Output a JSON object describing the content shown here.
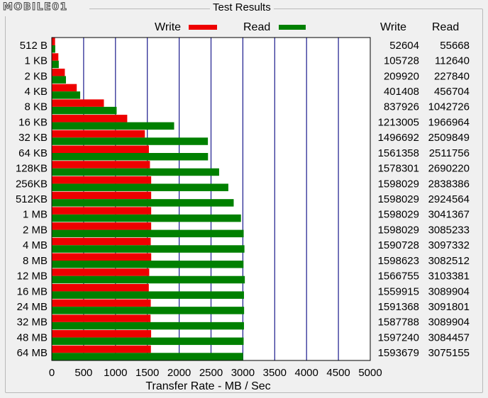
{
  "window": {
    "group_title": "Test Results",
    "watermark": "MOBILE01"
  },
  "legend": {
    "write_label": "Write",
    "read_label": "Read",
    "write_color": "#ee0000",
    "read_color": "#008000"
  },
  "table": {
    "write_header": "Write",
    "read_header": "Read"
  },
  "chart_data": {
    "type": "bar",
    "orientation": "horizontal",
    "title": "",
    "xlabel": "Transfer Rate - MB / Sec",
    "ylabel": "",
    "xlim": [
      0,
      5000
    ],
    "xticks": [
      0,
      500,
      1000,
      1500,
      2000,
      2500,
      3000,
      3500,
      4000,
      4500,
      5000
    ],
    "grid": "vertical",
    "legend_position": "top",
    "categories": [
      "512 B",
      "1 KB",
      "2 KB",
      "4 KB",
      "8 KB",
      "16 KB",
      "32 KB",
      "64 KB",
      "128KB",
      "256KB",
      "512KB",
      "1 MB",
      "2 MB",
      "4 MB",
      "8 MB",
      "12 MB",
      "16 MB",
      "24 MB",
      "32 MB",
      "48 MB",
      "64 MB"
    ],
    "series": [
      {
        "name": "Write",
        "color": "#ee0000",
        "values": [
          52604,
          105728,
          209920,
          401408,
          837926,
          1213005,
          1496692,
          1561358,
          1578301,
          1598029,
          1598029,
          1598029,
          1598029,
          1590728,
          1598623,
          1566755,
          1559915,
          1591368,
          1587788,
          1597240,
          1593679
        ],
        "value_labels": [
          "52604",
          "105728",
          "209920",
          "401408",
          "837926",
          "1213005",
          "1496692",
          "1561358",
          "1578301",
          "1598029",
          "1598029",
          "1598029",
          "1598029",
          "1590728",
          "1598623",
          "1566755",
          "1559915",
          "1591368",
          "1587788",
          "1597240",
          "1593679"
        ]
      },
      {
        "name": "Read",
        "color": "#008000",
        "values": [
          55668,
          112640,
          227840,
          456704,
          1042726,
          1966964,
          2509849,
          2511756,
          2690220,
          2838386,
          2924564,
          3041367,
          3085233,
          3097332,
          3082512,
          3103381,
          3089904,
          3091801,
          3089904,
          3084457,
          3075155
        ],
        "value_labels": [
          "55668",
          "112640",
          "227840",
          "456704",
          "1042726",
          "1966964",
          "2509849",
          "2511756",
          "2690220",
          "2838386",
          "2924564",
          "3041367",
          "3085233",
          "3097332",
          "3082512",
          "3103381",
          "3089904",
          "3091801",
          "3089904",
          "3084457",
          "3075155"
        ]
      }
    ]
  }
}
